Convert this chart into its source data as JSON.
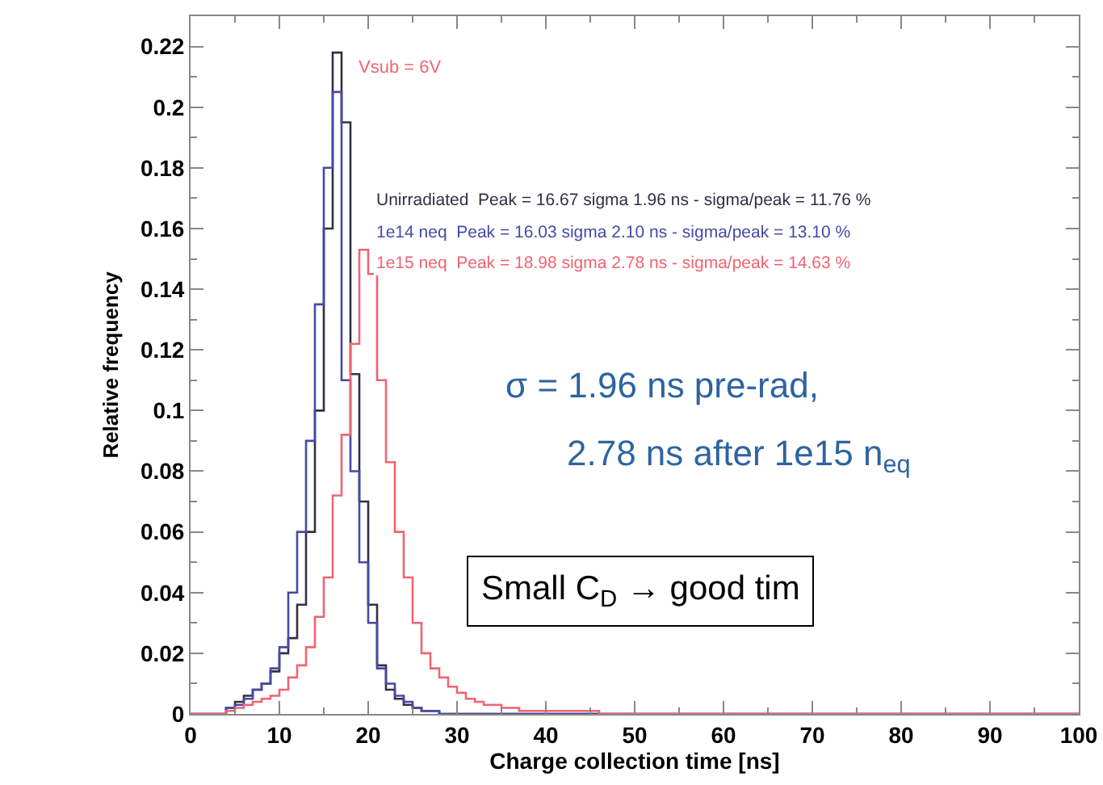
{
  "chart_data": {
    "type": "histogram",
    "xlabel": "Charge collection time [ns]",
    "ylabel": "Relative frequency",
    "bins": [
      0,
      1,
      2,
      3,
      4,
      5,
      6,
      7,
      8,
      9,
      10,
      11,
      12,
      13,
      14,
      15,
      16,
      17,
      18,
      19,
      20,
      21,
      22,
      23,
      24,
      25,
      26,
      27,
      28,
      29,
      30,
      31,
      32,
      33,
      34,
      35,
      36,
      37,
      38,
      39,
      40,
      41,
      42,
      43,
      44,
      45,
      46,
      47,
      48,
      49,
      50,
      51,
      52,
      53,
      54,
      55,
      56,
      57,
      58,
      59,
      60,
      61,
      62,
      63,
      64,
      65,
      66,
      67,
      68,
      69,
      70,
      71,
      72,
      73,
      74,
      75,
      76,
      77,
      78,
      79,
      80,
      81,
      82,
      83,
      84,
      85,
      86,
      87,
      88,
      89,
      90,
      91,
      92,
      93,
      94,
      95,
      96,
      97,
      98,
      99,
      100
    ],
    "series": [
      {
        "color": "#303040",
        "values": [
          0,
          0,
          0,
          0,
          0.002,
          0.004,
          0.006,
          0.008,
          0.01,
          0.014,
          0.02,
          0.025,
          0.036,
          0.06,
          0.1,
          0.16,
          0.218,
          0.195,
          0.112,
          0.07,
          0.036,
          0.016,
          0.008,
          0.005,
          0.003,
          0.002,
          0.001,
          0.001,
          0,
          0,
          0,
          0,
          0,
          0,
          0,
          0,
          0,
          0,
          0,
          0,
          0,
          0,
          0,
          0,
          0,
          0,
          0,
          0,
          0,
          0,
          0,
          0,
          0,
          0,
          0,
          0,
          0,
          0,
          0,
          0,
          0,
          0,
          0,
          0,
          0,
          0,
          0,
          0,
          0,
          0,
          0,
          0,
          0,
          0,
          0,
          0,
          0,
          0,
          0,
          0,
          0,
          0,
          0,
          0,
          0,
          0,
          0,
          0,
          0,
          0,
          0,
          0,
          0,
          0,
          0,
          0,
          0,
          0,
          0,
          0
        ]
      },
      {
        "color": "#4848a8",
        "values": [
          0,
          0,
          0,
          0,
          0.002,
          0.003,
          0.005,
          0.008,
          0.01,
          0.015,
          0.022,
          0.04,
          0.06,
          0.09,
          0.135,
          0.18,
          0.205,
          0.11,
          0.08,
          0.05,
          0.03,
          0.015,
          0.01,
          0.006,
          0.004,
          0.002,
          0.001,
          0.001,
          0,
          0,
          0,
          0,
          0,
          0,
          0,
          0,
          0,
          0,
          0,
          0,
          0,
          0,
          0,
          0,
          0,
          0,
          0,
          0,
          0,
          0,
          0,
          0,
          0,
          0,
          0,
          0,
          0,
          0,
          0,
          0,
          0,
          0,
          0,
          0,
          0,
          0,
          0,
          0,
          0,
          0,
          0,
          0,
          0,
          0,
          0,
          0,
          0,
          0,
          0,
          0,
          0,
          0,
          0,
          0,
          0,
          0,
          0,
          0,
          0,
          0,
          0,
          0,
          0,
          0,
          0,
          0,
          0,
          0,
          0,
          0
        ]
      },
      {
        "color": "#f06470",
        "values": [
          0,
          0,
          0,
          0,
          0.001,
          0.002,
          0.003,
          0.004,
          0.005,
          0.006,
          0.008,
          0.012,
          0.016,
          0.022,
          0.032,
          0.045,
          0.072,
          0.092,
          0.122,
          0.153,
          0.145,
          0.11,
          0.083,
          0.06,
          0.045,
          0.03,
          0.02,
          0.015,
          0.012,
          0.009,
          0.007,
          0.005,
          0.004,
          0.003,
          0.003,
          0.002,
          0.002,
          0.001,
          0.001,
          0.001,
          0.001,
          0.001,
          0.001,
          0.001,
          0.001,
          0.001,
          0,
          0,
          0,
          0,
          0,
          0,
          0,
          0,
          0,
          0,
          0,
          0,
          0,
          0,
          0,
          0,
          0,
          0,
          0,
          0,
          0,
          0,
          0,
          0,
          0,
          0,
          0,
          0,
          0,
          0,
          0,
          0,
          0,
          0,
          0,
          0,
          0,
          0,
          0,
          0,
          0,
          0,
          0,
          0,
          0,
          0,
          0,
          0,
          0,
          0,
          0,
          0,
          0,
          0
        ]
      }
    ],
    "xlim": [
      0,
      100
    ],
    "xticks": [
      0,
      10,
      20,
      30,
      40,
      50,
      60,
      70,
      80,
      90,
      100
    ],
    "ylim": [
      0,
      0.23
    ],
    "yticks": [
      0,
      0.02,
      0.04,
      0.06,
      0.08,
      0.1,
      0.12,
      0.14,
      0.16,
      0.18,
      0.2,
      0.22
    ],
    "grid": false,
    "annotations": [
      "Vsub = 6V",
      "Unirradiated  Peak = 16.67 sigma 1.96 ns - sigma/peak = 11.76 %",
      "1e14 neq  Peak = 16.03 sigma 2.10 ns - sigma/peak = 13.10 %",
      "1e15 neq  Peak = 18.98 sigma 2.78 ns - sigma/peak = 14.63 %",
      "σ = 1.96 ns pre-rad,",
      "2.78 ns after 1e15 n$_{eq}$",
      "Small C$_{D}$ → good tim"
    ]
  }
}
